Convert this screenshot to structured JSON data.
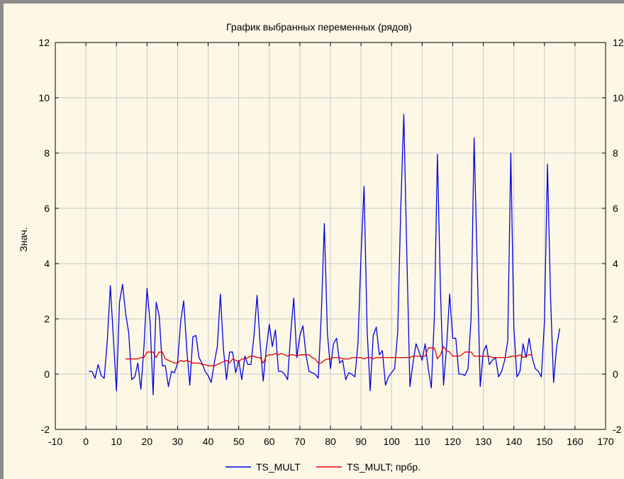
{
  "chart_data": {
    "type": "line",
    "title": "График выбранных переменных (рядов)",
    "ylabel": "Знач.",
    "xlabel": "",
    "xlim": [
      -10,
      170
    ],
    "ylim": [
      -2,
      12
    ],
    "x_ticks": [
      -10,
      0,
      10,
      20,
      30,
      40,
      50,
      60,
      70,
      80,
      90,
      100,
      110,
      120,
      130,
      140,
      150,
      160,
      170
    ],
    "x_tick_labels": [
      "-10",
      "0",
      "10",
      "20",
      "30",
      "40",
      "50",
      "60",
      "70",
      "80",
      "90",
      "100",
      "110",
      "120",
      "130",
      "140",
      "150",
      "160",
      "170"
    ],
    "y_ticks": [
      -2,
      0,
      2,
      4,
      6,
      8,
      10,
      12
    ],
    "y_tick_labels": [
      "-2",
      "0",
      "2",
      "4",
      "6",
      "8",
      "10",
      "12"
    ],
    "right_y_tick_labels": [
      "-2",
      "0",
      "2",
      "4",
      "6",
      "8",
      "10",
      "12"
    ],
    "grid": true,
    "legend_position": "bottom-center",
    "series": [
      {
        "name": "TS_MULT",
        "color": "#0000e6",
        "x_start": 1,
        "values": [
          0.1,
          0.1,
          -0.15,
          0.35,
          -0.05,
          -0.15,
          1.2,
          3.2,
          1.3,
          -0.6,
          2.6,
          3.25,
          2.2,
          1.5,
          -0.2,
          -0.1,
          0.4,
          -0.55,
          1.0,
          3.1,
          1.9,
          -0.75,
          2.6,
          2.1,
          0.3,
          0.3,
          -0.45,
          0.1,
          0.05,
          0.4,
          1.9,
          2.65,
          0.9,
          -0.4,
          1.35,
          1.4,
          0.6,
          0.4,
          0.1,
          -0.05,
          -0.3,
          0.4,
          1.0,
          2.9,
          0.9,
          -0.2,
          0.8,
          0.8,
          0.05,
          0.5,
          -0.2,
          0.65,
          0.35,
          0.35,
          1.4,
          2.85,
          1.1,
          -0.25,
          0.9,
          1.8,
          1.0,
          1.6,
          0.1,
          0.1,
          0.0,
          -0.2,
          1.5,
          2.75,
          0.6,
          1.4,
          1.75,
          0.7,
          0.1,
          0.05,
          0.0,
          -0.15,
          2.1,
          5.45,
          1.5,
          0.2,
          1.1,
          1.3,
          0.4,
          0.5,
          -0.2,
          0.05,
          0.0,
          -0.1,
          1.1,
          4.3,
          6.8,
          1.6,
          -0.6,
          1.4,
          1.7,
          0.7,
          0.85,
          -0.4,
          -0.1,
          0.05,
          0.2,
          1.5,
          6.0,
          9.4,
          4.3,
          -0.45,
          0.4,
          1.1,
          0.8,
          0.5,
          1.1,
          0.2,
          -0.5,
          2.1,
          7.95,
          3.0,
          -0.4,
          1.0,
          2.9,
          1.3,
          1.3,
          0.0,
          0.0,
          -0.05,
          0.2,
          2.0,
          8.55,
          4.0,
          -0.45,
          0.8,
          1.05,
          0.35,
          0.5,
          0.6,
          -0.1,
          0.1,
          0.5,
          1.2,
          8.0,
          1.7,
          -0.1,
          0.1,
          1.1,
          0.6,
          1.3,
          0.6,
          0.2,
          0.1,
          -0.1,
          1.9,
          7.6,
          2.8,
          -0.3,
          1.0,
          1.65
        ]
      },
      {
        "name": "TS_MULT; прбр.",
        "color": "#e60000",
        "x_start": 13,
        "values": [
          0.55,
          0.55,
          0.55,
          0.55,
          0.55,
          0.6,
          0.6,
          0.8,
          0.8,
          0.8,
          0.6,
          0.8,
          0.8,
          0.55,
          0.5,
          0.45,
          0.4,
          0.4,
          0.5,
          0.45,
          0.5,
          0.45,
          0.4,
          0.4,
          0.4,
          0.35,
          0.35,
          0.3,
          0.3,
          0.3,
          0.35,
          0.4,
          0.45,
          0.5,
          0.4,
          0.55,
          0.5,
          0.45,
          0.55,
          0.55,
          0.6,
          0.65,
          0.65,
          0.6,
          0.6,
          0.4,
          0.65,
          0.7,
          0.7,
          0.75,
          0.7,
          0.75,
          0.7,
          0.65,
          0.7,
          0.7,
          0.65,
          0.7,
          0.7,
          0.7,
          0.7,
          0.6,
          0.55,
          0.4,
          0.4,
          0.5,
          0.55,
          0.55,
          0.6,
          0.6,
          0.6,
          0.55,
          0.55,
          0.55,
          0.6,
          0.6,
          0.6,
          0.6,
          0.55,
          0.6,
          0.6,
          0.55,
          0.6,
          0.6,
          0.6,
          0.6,
          0.6,
          0.6,
          0.6,
          0.6,
          0.6,
          0.6,
          0.6,
          0.6,
          0.65,
          0.65,
          0.65,
          0.65,
          0.65,
          0.95,
          0.95,
          0.95,
          0.55,
          0.7,
          1.0,
          0.85,
          0.8,
          0.65,
          0.65,
          0.65,
          0.7,
          0.8,
          0.8,
          0.8,
          0.65,
          0.65,
          0.65,
          0.65,
          0.65,
          0.65,
          0.6,
          0.6,
          0.6,
          0.6,
          0.6,
          0.6,
          0.65,
          0.65,
          0.65,
          0.7,
          0.6,
          0.65,
          0.7,
          0.7
        ]
      }
    ]
  }
}
